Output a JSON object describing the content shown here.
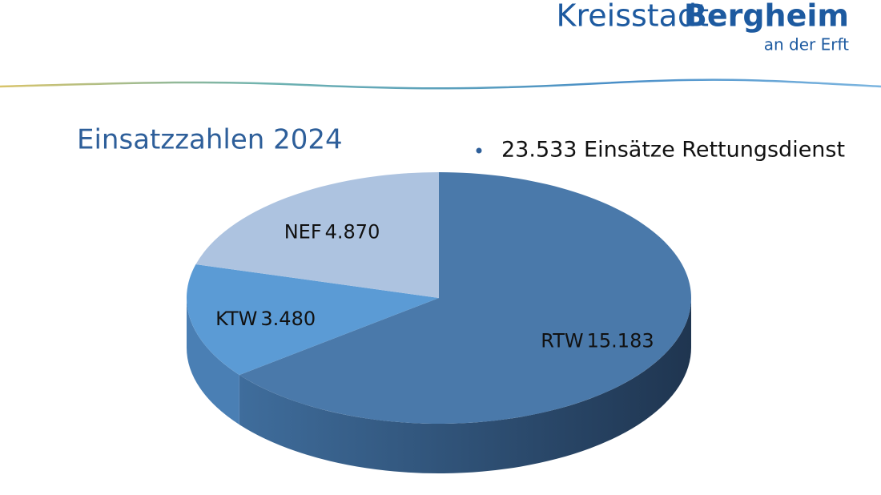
{
  "header": {
    "brand_light": "Kreisstadt",
    "brand_bold": "Bergheim",
    "brand_sub": "an der Erft"
  },
  "chart_data": {
    "type": "pie",
    "title": "Einsatzzahlen 2024",
    "annotations": [
      "23.533 Einsätze Rettungsdienst"
    ],
    "categories": [
      "RTW",
      "KTW",
      "NEF"
    ],
    "values": [
      15183,
      3480,
      4870
    ],
    "value_labels": [
      "15.183",
      "3.480",
      "4.870"
    ],
    "colors": [
      "#4a79aa",
      "#5b9bd5",
      "#adc3e0"
    ]
  }
}
